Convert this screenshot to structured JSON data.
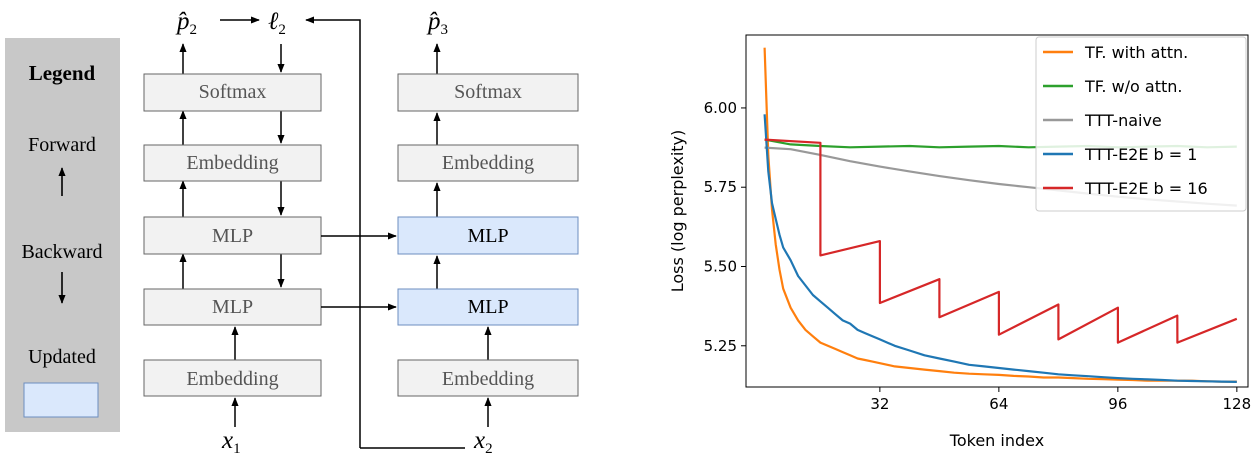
{
  "legend": {
    "title": "Legend",
    "forward_label": "Forward",
    "backward_label": "Backward",
    "updated_label": "Updated"
  },
  "diagram": {
    "column1": {
      "output_p": "p̂",
      "output_p_sub": "2",
      "loss": "ℓ",
      "loss_sub": "2",
      "input": "x",
      "input_sub": "1",
      "blocks": [
        "Softmax",
        "Embedding",
        "MLP",
        "MLP",
        "Embedding"
      ]
    },
    "column2": {
      "output_p": "p̂",
      "output_p_sub": "3",
      "input": "x",
      "input_sub": "2",
      "blocks": [
        "Softmax",
        "Embedding",
        "MLP",
        "MLP",
        "Embedding"
      ]
    },
    "colors": {
      "block_fill": "#f2f2f2",
      "updated_fill": "#dae8fc",
      "legend_bg": "#c8c8c8"
    }
  },
  "chart_data": {
    "type": "line",
    "xlabel": "Token index",
    "ylabel": "Loss (log perplexity)",
    "xlim": [
      -4,
      131
    ],
    "ylim": [
      5.12,
      6.23
    ],
    "xticks": [
      32,
      64,
      96,
      128
    ],
    "yticks": [
      5.25,
      5.5,
      5.75,
      6.0
    ],
    "legend_position": "top-right",
    "series": [
      {
        "name": "TF. with attn.",
        "color": "#ff7f0e",
        "x": [
          1,
          2,
          3,
          4,
          5,
          6,
          8,
          10,
          12,
          14,
          16,
          18,
          20,
          22,
          24,
          26,
          28,
          30,
          32,
          36,
          40,
          44,
          48,
          52,
          56,
          60,
          64,
          68,
          72,
          76,
          80,
          84,
          88,
          92,
          96,
          100,
          104,
          108,
          112,
          116,
          120,
          124,
          128
        ],
        "y": [
          6.19,
          5.85,
          5.68,
          5.57,
          5.49,
          5.43,
          5.37,
          5.33,
          5.3,
          5.28,
          5.26,
          5.25,
          5.24,
          5.23,
          5.22,
          5.21,
          5.205,
          5.2,
          5.195,
          5.185,
          5.18,
          5.175,
          5.17,
          5.165,
          5.162,
          5.16,
          5.158,
          5.155,
          5.153,
          5.15,
          5.15,
          5.148,
          5.146,
          5.145,
          5.143,
          5.142,
          5.14,
          5.14,
          5.14,
          5.14,
          5.138,
          5.137,
          5.137
        ]
      },
      {
        "name": "TF. w/o attn.",
        "color": "#2ca02c",
        "x": [
          1,
          8,
          16,
          24,
          32,
          40,
          48,
          56,
          64,
          72,
          80,
          88,
          96,
          104,
          112,
          120,
          128
        ],
        "y": [
          5.9,
          5.885,
          5.88,
          5.876,
          5.878,
          5.88,
          5.876,
          5.878,
          5.88,
          5.876,
          5.878,
          5.88,
          5.876,
          5.878,
          5.88,
          5.876,
          5.878
        ]
      },
      {
        "name": "TTT-naive",
        "color": "#999999",
        "x": [
          1,
          8,
          16,
          24,
          32,
          40,
          48,
          56,
          64,
          72,
          80,
          88,
          96,
          104,
          112,
          120,
          128
        ],
        "y": [
          5.875,
          5.87,
          5.852,
          5.832,
          5.815,
          5.8,
          5.785,
          5.772,
          5.76,
          5.75,
          5.74,
          5.73,
          5.72,
          5.712,
          5.705,
          5.698,
          5.692
        ]
      },
      {
        "name": "TTT-E2E b = 1",
        "color": "#1f77b4",
        "x": [
          1,
          2,
          3,
          4,
          5,
          6,
          8,
          10,
          12,
          14,
          16,
          18,
          20,
          22,
          24,
          26,
          28,
          30,
          32,
          36,
          40,
          44,
          48,
          52,
          56,
          60,
          64,
          68,
          72,
          76,
          80,
          84,
          88,
          92,
          96,
          100,
          104,
          108,
          112,
          116,
          120,
          124,
          128
        ],
        "y": [
          5.98,
          5.8,
          5.7,
          5.65,
          5.6,
          5.56,
          5.52,
          5.47,
          5.44,
          5.41,
          5.39,
          5.37,
          5.35,
          5.33,
          5.32,
          5.3,
          5.29,
          5.28,
          5.27,
          5.25,
          5.235,
          5.22,
          5.21,
          5.2,
          5.19,
          5.185,
          5.18,
          5.175,
          5.17,
          5.165,
          5.16,
          5.157,
          5.154,
          5.151,
          5.148,
          5.146,
          5.144,
          5.142,
          5.14,
          5.139,
          5.138,
          5.137,
          5.136
        ]
      },
      {
        "name": "TTT-E2E b = 16",
        "color": "#d62728",
        "x": [
          1,
          16,
          16.01,
          32,
          32.01,
          48,
          48.01,
          64,
          64.01,
          80,
          80.01,
          96,
          96.01,
          112,
          112.01,
          128
        ],
        "y": [
          5.9,
          5.89,
          5.535,
          5.58,
          5.385,
          5.46,
          5.34,
          5.42,
          5.285,
          5.38,
          5.27,
          5.37,
          5.26,
          5.345,
          5.26,
          5.335
        ]
      }
    ]
  }
}
